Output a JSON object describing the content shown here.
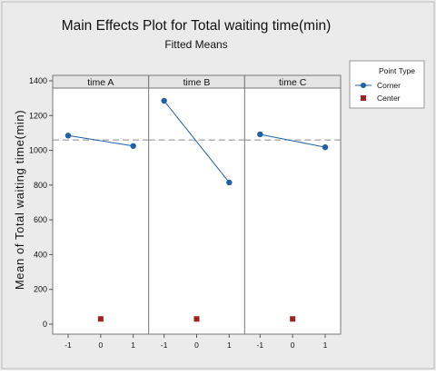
{
  "chart_data": {
    "type": "line",
    "title": "Main Effects Plot for Total waiting time(min)",
    "subtitle": "Fitted Means",
    "ylabel": "Mean of Total waiting time(min)",
    "ylim": [
      0,
      1400
    ],
    "yticks": [
      0,
      200,
      400,
      600,
      800,
      1000,
      1200,
      1400
    ],
    "xticks": [
      -1,
      0,
      1
    ],
    "mean_line": 1060,
    "grid": false,
    "legend": {
      "title": "Point Type",
      "placement": "right",
      "entries": [
        {
          "label": "Corner",
          "color": "#1f5fa8",
          "marker": "circle"
        },
        {
          "label": "Center",
          "color": "#a32020",
          "marker": "square"
        }
      ]
    },
    "panels": [
      {
        "label": "time  A",
        "corner": [
          {
            "x": -1,
            "y": 1085
          },
          {
            "x": 1,
            "y": 1025
          }
        ],
        "center": {
          "x": 0,
          "y": 30
        }
      },
      {
        "label": "time B",
        "corner": [
          {
            "x": -1,
            "y": 1285
          },
          {
            "x": 1,
            "y": 815
          }
        ],
        "center": {
          "x": 0,
          "y": 30
        }
      },
      {
        "label": "time C",
        "corner": [
          {
            "x": -1,
            "y": 1092
          },
          {
            "x": 1,
            "y": 1018
          }
        ],
        "center": {
          "x": 0,
          "y": 30
        }
      }
    ]
  }
}
